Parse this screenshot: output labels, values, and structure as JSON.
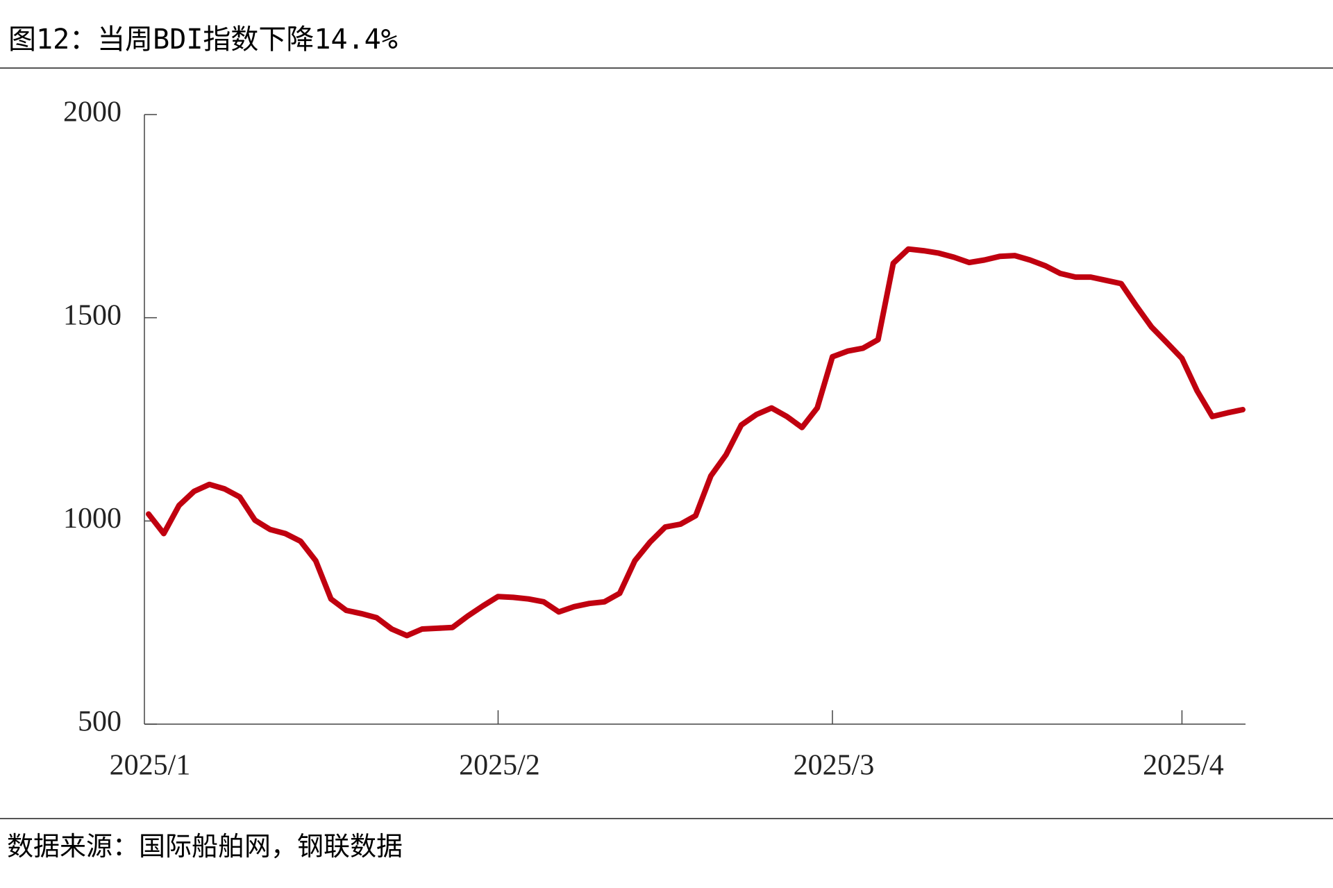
{
  "chart_data": {
    "type": "line",
    "title": "图12：当周BDI指数下降14.4%",
    "source": "数据来源：国际船舶网，钢联数据",
    "categories": [
      "2025/1",
      null,
      null,
      null,
      null,
      null,
      null,
      null,
      null,
      null,
      null,
      null,
      null,
      null,
      null,
      null,
      null,
      null,
      null,
      null,
      null,
      null,
      null,
      "2025/2",
      null,
      null,
      null,
      null,
      null,
      null,
      null,
      null,
      null,
      null,
      null,
      null,
      null,
      null,
      null,
      null,
      null,
      null,
      null,
      null,
      null,
      "2025/3",
      null,
      null,
      null,
      null,
      null,
      null,
      null,
      null,
      null,
      null,
      null,
      null,
      null,
      null,
      null,
      null,
      null,
      null,
      null,
      null,
      null,
      null,
      "2025/4",
      null,
      null,
      null,
      null
    ],
    "series": [
      {
        "name": "BDI",
        "color": "#c0000f",
        "values": [
          1017,
          969,
          1038,
          1073,
          1090,
          1079,
          1059,
          1002,
          979,
          969,
          950,
          902,
          808,
          780,
          772,
          762,
          734,
          718,
          734,
          736,
          738,
          766,
          791,
          814,
          812,
          808,
          801,
          776,
          789,
          797,
          801,
          822,
          902,
          948,
          985,
          992,
          1013,
          1111,
          1163,
          1236,
          1262,
          1278,
          1257,
          1230,
          1278,
          1404,
          1418,
          1425,
          1446,
          1634,
          1669,
          1665,
          1659,
          1649,
          1636,
          1642,
          1651,
          1653,
          1642,
          1628,
          1609,
          1600,
          1600,
          1592,
          1584,
          1529,
          1477,
          1439,
          1400,
          1320,
          1257,
          1266,
          1274
        ]
      }
    ],
    "ylim": [
      500,
      2000
    ],
    "yticks": [
      500,
      1000,
      1500,
      2000
    ],
    "grid": false
  }
}
